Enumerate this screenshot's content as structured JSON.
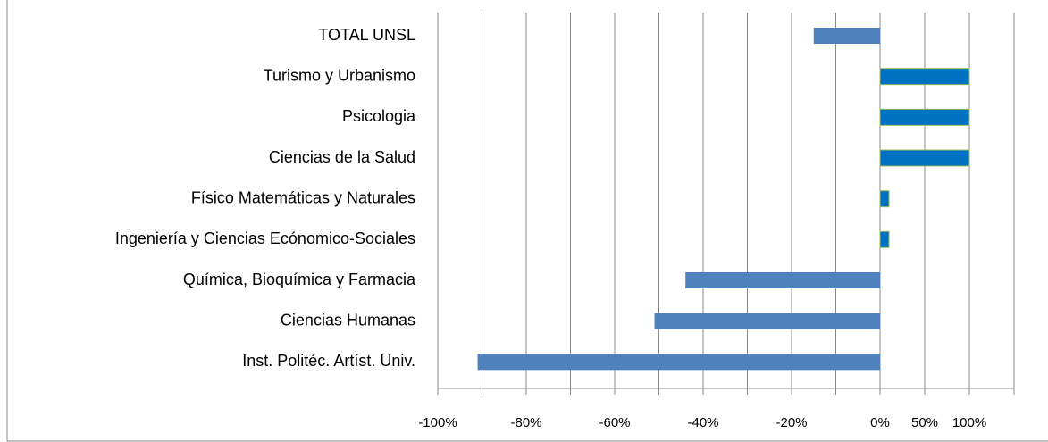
{
  "chart_data": {
    "type": "barh",
    "categories": [
      "TOTAL UNSL",
      "Turismo y Urbanismo",
      "Psicologia",
      "Ciencias de la Salud",
      "Físico Matemáticas y Naturales",
      "Ingeniería y Ciencias Ecónomico-Sociales",
      "Química, Bioquímica y Farmacia",
      "Ciencias Humanas",
      "Inst. Politéc. Artíst. Univ."
    ],
    "values": [
      -15,
      100,
      100,
      100,
      10,
      10,
      -44,
      -51,
      -91
    ],
    "colors": [
      "#4f81bd",
      "#0070c0",
      "#0070c0",
      "#0070c0",
      "#0070c0",
      "#0070c0",
      "#4f81bd",
      "#4f81bd",
      "#4f81bd"
    ],
    "xlim": [
      -100,
      150
    ],
    "xticks": [
      {
        "value": -100,
        "label": "-100%"
      },
      {
        "value": -80,
        "label": "-80%"
      },
      {
        "value": -60,
        "label": "-60%"
      },
      {
        "value": -40,
        "label": "-40%"
      },
      {
        "value": -20,
        "label": "-20%"
      },
      {
        "value": 0,
        "label": "0%"
      },
      {
        "value": 50,
        "label": "50%"
      },
      {
        "value": 100,
        "label": "100%"
      }
    ],
    "minor_xticks": [
      -90,
      -70,
      -50,
      -30,
      -10,
      150
    ],
    "grid": true
  }
}
